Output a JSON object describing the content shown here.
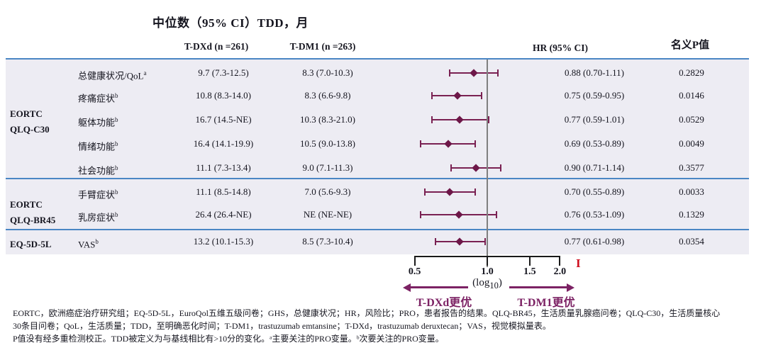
{
  "title": "中位数（95% CI）TDD，月",
  "columns": {
    "tdxd": "T-DXd (n =261)",
    "tdm1": "T-DM1 (n =263)",
    "hr": "HR (95% CI)",
    "p": "名义P值"
  },
  "groups": [
    {
      "lines": [
        "EORTC",
        "QLQ-C30"
      ]
    },
    {
      "lines": [
        "EORTC",
        "QLQ-BR45"
      ]
    },
    {
      "lines": [
        "EQ-5D-5L"
      ]
    }
  ],
  "table": {
    "rows": [
      {
        "group": "EORTC QLQ-C30",
        "label": "总健康状况/QoL",
        "sup": "a",
        "tdxd": "9.7 (7.3-12.5)",
        "tdm1": "8.3 (7.0-10.3)",
        "hr": 0.88,
        "lo": 0.7,
        "hi": 1.11,
        "hr_text": "0.88 (0.70-1.11)",
        "p": "0.2829"
      },
      {
        "group": "EORTC QLQ-C30",
        "label": "疼痛症状",
        "sup": "b",
        "tdxd": "10.8 (8.3-14.0)",
        "tdm1": "8.3 (6.6-9.8)",
        "hr": 0.75,
        "lo": 0.59,
        "hi": 0.95,
        "hr_text": "0.75 (0.59-0.95)",
        "p": "0.0146"
      },
      {
        "group": "EORTC QLQ-C30",
        "label": "躯体功能",
        "sup": "b",
        "tdxd": "16.7 (14.5-NE)",
        "tdm1": "10.3 (8.3-21.0)",
        "hr": 0.77,
        "lo": 0.59,
        "hi": 1.01,
        "hr_text": "0.77 (0.59-1.01)",
        "p": "0.0529"
      },
      {
        "group": "EORTC QLQ-C30",
        "label": "情绪功能",
        "sup": "b",
        "tdxd": "16.4 (14.1-19.9)",
        "tdm1": "10.5 (9.0-13.8)",
        "hr": 0.69,
        "lo": 0.53,
        "hi": 0.89,
        "hr_text": "0.69 (0.53-0.89)",
        "p": "0.0049"
      },
      {
        "group": "EORTC QLQ-C30",
        "label": "社会功能",
        "sup": "b",
        "tdxd": "11.1 (7.3-13.4)",
        "tdm1": "9.0 (7.1-11.3)",
        "hr": 0.9,
        "lo": 0.71,
        "hi": 1.14,
        "hr_text": "0.90 (0.71-1.14)",
        "p": "0.3577"
      },
      {
        "group": "EORTC QLQ-BR45",
        "label": "手臂症状",
        "sup": "b",
        "tdxd": "11.1 (8.5-14.8)",
        "tdm1": "7.0 (5.6-9.3)",
        "hr": 0.7,
        "lo": 0.55,
        "hi": 0.89,
        "hr_text": "0.70 (0.55-0.89)",
        "p": "0.0033"
      },
      {
        "group": "EORTC QLQ-BR45",
        "label": "乳房症状",
        "sup": "b",
        "tdxd": "26.4 (26.4-NE)",
        "tdm1": "NE (NE-NE)",
        "hr": 0.76,
        "lo": 0.53,
        "hi": 1.09,
        "hr_text": "0.76 (0.53-1.09)",
        "p": "0.1329"
      },
      {
        "group": "EQ-5D-5L",
        "label": "VAS",
        "sup": "b",
        "tdxd": "13.2 (10.1-15.3)",
        "tdm1": "8.5 (7.3-10.4)",
        "hr": 0.77,
        "lo": 0.61,
        "hi": 0.98,
        "hr_text": "0.77 (0.61-0.98)",
        "p": "0.0354"
      }
    ]
  },
  "axis": {
    "ticks": [
      0.5,
      1.0,
      1.5,
      2.0
    ],
    "tick_labels": [
      "0.5",
      "1.0",
      "1.5",
      "2.0"
    ],
    "scale_prefix": "(log",
    "scale_sub": "10",
    "scale_suffix": ")",
    "left_arrow_label": "T-DXd更优",
    "right_arrow_label": "T-DM1更优",
    "reference_value": 1.0
  },
  "red_mark": "I",
  "footnotes": [
    "EORTC，欧洲癌症治疗研究组；EQ-5D-5L，EuroQol五维五级问卷；GHS，总健康状况；HR，风险比；PRO，患者报告的结果。QLQ-BR45，生活质量乳腺癌问卷；QLQ-C30，生活质量核心",
    "30条目问卷；QoL，生活质量；TDD，至明确恶化时间；T-DM1，trastuzumab emtansine；T-DXd，trastuzumab deruxtecan；VAS，视觉模拟量表。",
    "P值没有经多重检测校正。TDD被定义为与基线相比有>10分的变化。ᵃ主要关注的PRO变量。ᵇ次要关注的PRO变量。"
  ],
  "colors": {
    "marker": "#6d1748",
    "ci_line": "#7a2152",
    "arrow": "#7c2264",
    "blue_line": "#4a86c4",
    "band": "#edecf3",
    "ref_line": "#7f7f7f",
    "axis": "#1a1a1a",
    "red_mark": "#cf1020",
    "text": "#15151f"
  },
  "chart_data": {
    "type": "scatter",
    "subtype": "forest-plot",
    "title": "中位数（95% CI）TDD，月",
    "xlabel": "(log10)",
    "x_scale": "log10",
    "x_ticks": [
      0.5,
      1.0,
      1.5,
      2.0
    ],
    "reference_line": 1.0,
    "legend": {
      "left": "T-DXd更优",
      "right": "T-DM1更优"
    },
    "categories": [
      "总健康状况/QoL",
      "疼痛症状",
      "躯体功能",
      "情绪功能",
      "社会功能",
      "手臂症状",
      "乳房症状",
      "VAS"
    ],
    "group_of_category": [
      "EORTC QLQ-C30",
      "EORTC QLQ-C30",
      "EORTC QLQ-C30",
      "EORTC QLQ-C30",
      "EORTC QLQ-C30",
      "EORTC QLQ-BR45",
      "EORTC QLQ-BR45",
      "EQ-5D-5L"
    ],
    "hr": [
      0.88,
      0.75,
      0.77,
      0.69,
      0.9,
      0.7,
      0.76,
      0.77
    ],
    "ci_low": [
      0.7,
      0.59,
      0.59,
      0.53,
      0.71,
      0.55,
      0.53,
      0.61
    ],
    "ci_high": [
      1.11,
      0.95,
      1.01,
      0.89,
      1.14,
      0.89,
      1.09,
      0.98
    ],
    "p_values": [
      "0.2829",
      "0.0146",
      "0.0529",
      "0.0049",
      "0.3577",
      "0.0033",
      "0.1329",
      "0.0354"
    ],
    "median_tdxd": [
      "9.7 (7.3-12.5)",
      "10.8 (8.3-14.0)",
      "16.7 (14.5-NE)",
      "16.4 (14.1-19.9)",
      "11.1 (7.3-13.4)",
      "11.1 (8.5-14.8)",
      "26.4 (26.4-NE)",
      "13.2 (10.1-15.3)"
    ],
    "median_tdm1": [
      "8.3 (7.0-10.3)",
      "8.3 (6.6-9.8)",
      "10.3 (8.3-21.0)",
      "10.5 (9.0-13.8)",
      "9.0 (7.1-11.3)",
      "7.0 (5.6-9.3)",
      "NE (NE-NE)",
      "8.5 (7.3-10.4)"
    ]
  }
}
